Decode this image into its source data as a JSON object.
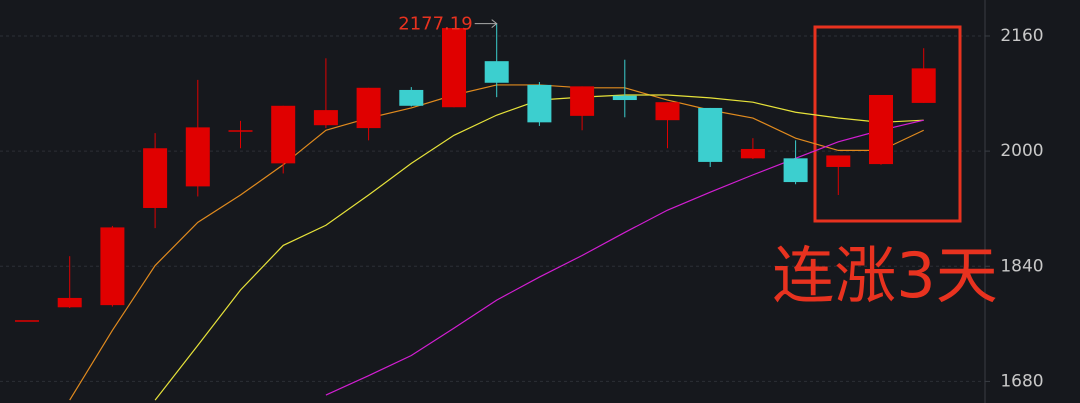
{
  "chart_data": {
    "type": "candlestick",
    "open": [
      1765,
      1783,
      1786,
      1921,
      1951,
      2029,
      1983,
      2036,
      2032,
      2085,
      2061,
      2125,
      2092,
      2049,
      2077,
      2043,
      2060,
      1990,
      1990,
      1978,
      1982,
      2067
    ],
    "high": [
      1765,
      1854,
      1896,
      2025,
      2099,
      2042,
      2063,
      2129,
      2088,
      2089,
      2171,
      2177.19,
      2096,
      2090,
      2127,
      2068,
      2060,
      2018,
      2015,
      1994,
      2078,
      2143
    ],
    "low": [
      1765,
      1782,
      1784,
      1893,
      1937,
      2004,
      1969,
      2032,
      2015,
      2062,
      2061,
      2075,
      2035,
      2029,
      2047,
      2004,
      1978,
      1989,
      1954,
      1939,
      1981,
      2067
    ],
    "close": [
      1765,
      1796,
      1894,
      2004,
      2033,
      2029,
      2063,
      2057,
      2088,
      2063,
      2171,
      2095,
      2040,
      2090,
      2071,
      2068,
      1985,
      2003,
      1957,
      1994,
      2078,
      2115
    ],
    "up_color": "#e00000",
    "down_color": "#3ccfcf",
    "lines": [
      {
        "color": "#e08a1e",
        "values": [
          null,
          1654,
          1751,
          1841,
          1901,
          1939,
          1981,
          2029,
          2046,
          2060,
          2078,
          2092,
          2092,
          2088,
          2088,
          2071,
          2057,
          2046,
          2018,
          2001,
          2001,
          2029
        ]
      },
      {
        "color": "#e6e23a",
        "values": [
          null,
          null,
          null,
          1654,
          1730,
          1807,
          1869,
          1897,
          1939,
          1983,
          2022,
          2050,
          2071,
          2075,
          2078,
          2078,
          2074,
          2068,
          2054,
          2046,
          2040,
          2043
        ]
      },
      {
        "color": "#d21ed2",
        "values": [
          null,
          null,
          null,
          null,
          null,
          null,
          null,
          1661,
          1688,
          1716,
          1754,
          1793,
          1825,
          1855,
          1887,
          1918,
          1943,
          1967,
          1990,
          2013,
          2029,
          2043
        ]
      }
    ],
    "ylim": [
      1650,
      2210
    ],
    "yticks": [
      1680,
      1840,
      2000,
      2160
    ],
    "grid": true,
    "annotation": "连涨3天"
  }
}
